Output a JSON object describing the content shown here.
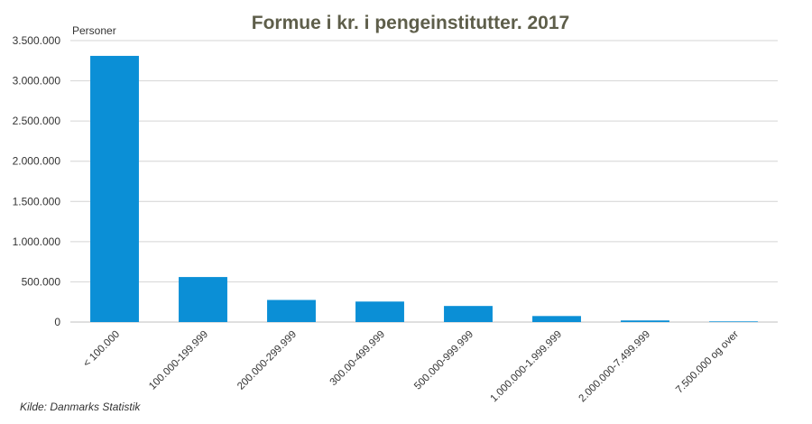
{
  "chart_data": {
    "type": "bar",
    "title": "Formue i kr. i pengeinstitutter. 2017",
    "unit_label": "Personer",
    "source": "Kilde: Danmarks Statistik",
    "categories": [
      "< 100.000",
      "100.000-199.999",
      "200.000-299.999",
      "300.00-499.999",
      "500.000-999.999",
      "1.000.000-1.999.999",
      "2.000.000-7.499.999",
      "7.500.000 og over"
    ],
    "values": [
      3310000,
      560000,
      275000,
      255000,
      200000,
      75000,
      20000,
      8000
    ],
    "ylim": [
      0,
      3500000
    ],
    "yticks": [
      "0",
      "500.000",
      "1.000.000",
      "1.500.000",
      "2.000.000",
      "2.500.000",
      "3.000.000",
      "3.500.000"
    ],
    "grid": true,
    "bar_color": "#0b8fd6"
  }
}
